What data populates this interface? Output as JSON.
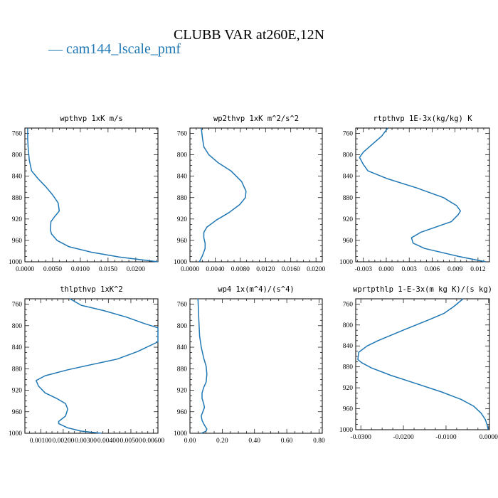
{
  "title": "CLUBB VAR at260E,12N",
  "legend": [
    {
      "label": "— cam144_lscale_pmf",
      "color": "#1f77b4"
    }
  ],
  "series_color": "#1f77b4",
  "chart_data": [
    {
      "type": "line",
      "title": "wpthvp  1xK m/s",
      "xlim": [
        0.0,
        0.024
      ],
      "ylim": [
        1000,
        750
      ],
      "xticks": [
        0.0,
        0.005,
        0.01,
        0.015,
        0.02
      ],
      "xtick_labels": [
        "0.0000",
        "0.0050",
        "0.0100",
        "0.0150",
        "0.0200"
      ],
      "yticks": [
        760,
        800,
        840,
        880,
        920,
        960,
        1000
      ],
      "x": [
        0.0005,
        0.0005,
        0.0006,
        0.0008,
        0.0012,
        0.0024,
        0.0038,
        0.005,
        0.006,
        0.0062,
        0.0054,
        0.0047,
        0.0046,
        0.0048,
        0.0058,
        0.008,
        0.012,
        0.017,
        0.024
      ],
      "y": [
        750,
        770,
        790,
        810,
        830,
        845,
        860,
        875,
        890,
        905,
        915,
        925,
        940,
        948,
        960,
        972,
        982,
        991,
        1000
      ]
    },
    {
      "type": "line",
      "title": "wp2thvp  1xK m^2/s^2",
      "xlim": [
        0.0,
        0.021
      ],
      "ylim": [
        1000,
        750
      ],
      "xticks": [
        0.0,
        0.004,
        0.008,
        0.012,
        0.016,
        0.02
      ],
      "xtick_labels": [
        "0.0000",
        "0.0040",
        "0.0080",
        "0.0120",
        "0.0160",
        "0.0200"
      ],
      "yticks": [
        760,
        800,
        840,
        880,
        920,
        960,
        1000
      ],
      "x": [
        0.0018,
        0.002,
        0.0022,
        0.003,
        0.0045,
        0.0065,
        0.0082,
        0.0089,
        0.0088,
        0.0079,
        0.0062,
        0.0042,
        0.0027,
        0.0022,
        0.0022,
        0.0024,
        0.0024,
        0.002,
        0.0015
      ],
      "y": [
        750,
        770,
        785,
        800,
        815,
        830,
        850,
        868,
        880,
        893,
        908,
        922,
        935,
        945,
        955,
        965,
        975,
        988,
        1000
      ]
    },
    {
      "type": "line",
      "title": "rtpthvp  1E-3x(kg/kg) K",
      "xlim": [
        -0.004,
        0.0135
      ],
      "ylim": [
        1000,
        750
      ],
      "xticks": [
        -0.003,
        0.0,
        0.003,
        0.006,
        0.009,
        0.012
      ],
      "xtick_labels": [
        "-0.003",
        "0.000",
        "0.003",
        "0.006",
        "0.009",
        "0.012"
      ],
      "yticks": [
        760,
        800,
        840,
        880,
        920,
        960,
        1000
      ],
      "x": [
        0.0002,
        -0.0006,
        -0.0018,
        -0.003,
        -0.0035,
        -0.003,
        -0.0024,
        0.0002,
        0.004,
        0.0075,
        0.0092,
        0.0097,
        0.0094,
        0.0085,
        0.0045,
        0.0033,
        0.0035,
        0.005,
        0.0095,
        0.013
      ],
      "y": [
        750,
        765,
        780,
        795,
        805,
        818,
        830,
        845,
        862,
        880,
        895,
        905,
        912,
        925,
        945,
        955,
        965,
        975,
        990,
        1000
      ]
    },
    {
      "type": "line",
      "title": "thlpthvp  1xK^2",
      "xlim": [
        0.0003,
        0.0062
      ],
      "ylim": [
        1000,
        750
      ],
      "xticks": [
        0.001,
        0.002,
        0.003,
        0.004,
        0.005,
        0.006
      ],
      "xtick_labels": [
        "0.00100",
        "0.00200",
        "0.00300",
        "0.00400",
        "0.00500",
        "0.00600"
      ],
      "yticks": [
        760,
        800,
        840,
        880,
        920,
        960,
        1000
      ],
      "x": [
        0.0023,
        0.0028,
        0.0038,
        0.0048,
        0.0056,
        0.0062,
        0.0062,
        0.0053,
        0.0044,
        0.0033,
        0.0022,
        0.0012,
        0.0008,
        0.0009,
        0.0012,
        0.0017,
        0.0021,
        0.0022,
        0.0021,
        0.0018,
        0.0018,
        0.0022,
        0.0028,
        0.0037
      ],
      "y": [
        750,
        762,
        772,
        784,
        796,
        804,
        830,
        848,
        862,
        872,
        882,
        893,
        902,
        912,
        925,
        935,
        945,
        955,
        968,
        978,
        982,
        990,
        996,
        1000
      ]
    },
    {
      "type": "line",
      "title": "wp4  1x(m^4)/(s^4)",
      "xlim": [
        0.0,
        0.82
      ],
      "ylim": [
        1000,
        750
      ],
      "xticks": [
        0.0,
        0.2,
        0.4,
        0.6,
        0.8
      ],
      "xtick_labels": [
        "0.00",
        "0.20",
        "0.40",
        "0.60",
        "0.80"
      ],
      "yticks": [
        760,
        800,
        840,
        880,
        920,
        960,
        1000
      ],
      "x": [
        0.05,
        0.055,
        0.06,
        0.07,
        0.085,
        0.1,
        0.105,
        0.1,
        0.085,
        0.075,
        0.075,
        0.085,
        0.09,
        0.08,
        0.07,
        0.075,
        0.09,
        0.105,
        0.1,
        0.07
      ],
      "y": [
        750,
        790,
        820,
        840,
        860,
        875,
        890,
        905,
        915,
        925,
        935,
        945,
        952,
        960,
        968,
        976,
        985,
        992,
        996,
        1000
      ]
    },
    {
      "type": "line",
      "title": "wprtpthlp  1-E-3x(m kg K)/(s kg)",
      "xlim": [
        -0.0312,
        0.0002
      ],
      "ylim": [
        1000,
        750
      ],
      "xticks": [
        -0.03,
        -0.02,
        -0.01,
        0.0
      ],
      "xtick_labels": [
        "-0.0300",
        "-0.0200",
        "-0.0100",
        "0.0000"
      ],
      "yticks": [
        760,
        800,
        840,
        880,
        920,
        960,
        1000
      ],
      "x": [
        -0.006,
        -0.0082,
        -0.0105,
        -0.014,
        -0.0195,
        -0.026,
        -0.0285,
        -0.0305,
        -0.0307,
        -0.0298,
        -0.0275,
        -0.023,
        -0.017,
        -0.011,
        -0.0065,
        -0.0035,
        -0.0018,
        -0.0008,
        -0.0003,
        -0.0001
      ],
      "y": [
        750,
        765,
        778,
        790,
        808,
        830,
        840,
        852,
        866,
        872,
        882,
        896,
        912,
        928,
        942,
        955,
        968,
        980,
        992,
        1000
      ]
    }
  ]
}
